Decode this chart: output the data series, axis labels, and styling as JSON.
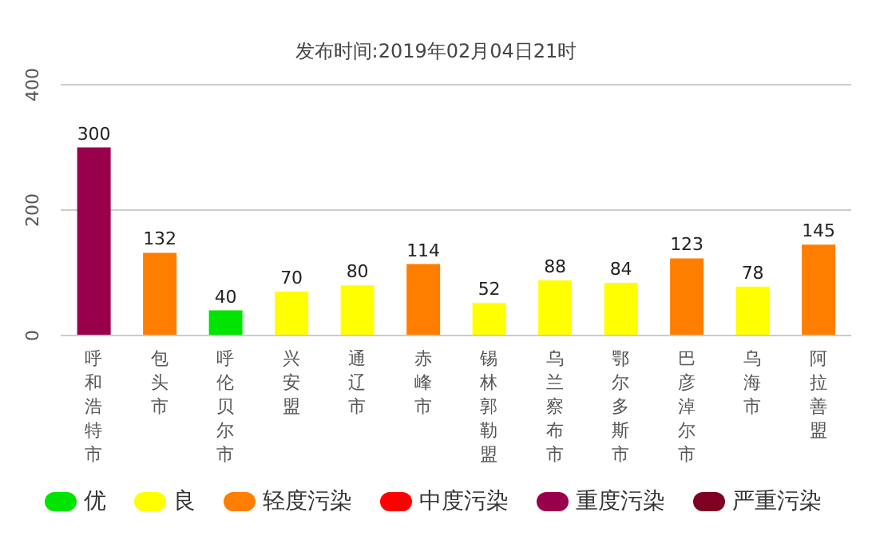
{
  "chart_data": {
    "type": "bar",
    "title": "发布时间:2019年02月04日21时",
    "categories": [
      "呼和浩特市",
      "包头市",
      "呼伦贝尔市",
      "兴安盟",
      "通辽市",
      "赤峰市",
      "锡林郭勒盟",
      "乌兰察布市",
      "鄂尔多斯市",
      "巴彦淖尔市",
      "乌海市",
      "阿拉善盟"
    ],
    "series": [
      {
        "name": "优",
        "color": "#00e400",
        "values": [
          null,
          null,
          40,
          null,
          null,
          null,
          null,
          null,
          null,
          null,
          null,
          null
        ]
      },
      {
        "name": "良",
        "color": "#ffff00",
        "values": [
          null,
          null,
          null,
          70,
          80,
          null,
          52,
          88,
          84,
          null,
          78,
          null
        ]
      },
      {
        "name": "轻度污染",
        "color": "#ff7e00",
        "values": [
          null,
          132,
          null,
          null,
          null,
          114,
          null,
          null,
          null,
          123,
          null,
          145
        ]
      },
      {
        "name": "中度污染",
        "color": "#ff0000",
        "values": [
          null,
          null,
          null,
          null,
          null,
          null,
          null,
          null,
          null,
          null,
          null,
          null
        ]
      },
      {
        "name": "重度污染",
        "color": "#99004c",
        "values": [
          300,
          null,
          null,
          null,
          null,
          null,
          null,
          null,
          null,
          null,
          null,
          null
        ]
      },
      {
        "name": "严重污染",
        "color": "#7e0023",
        "values": [
          null,
          null,
          null,
          null,
          null,
          null,
          null,
          null,
          null,
          null,
          null,
          null
        ]
      }
    ],
    "stacked": true,
    "ylim": [
      0,
      400
    ],
    "yticks": [
      0,
      200,
      400
    ],
    "grid": "y",
    "data_labels": true,
    "legend": "bottom"
  }
}
